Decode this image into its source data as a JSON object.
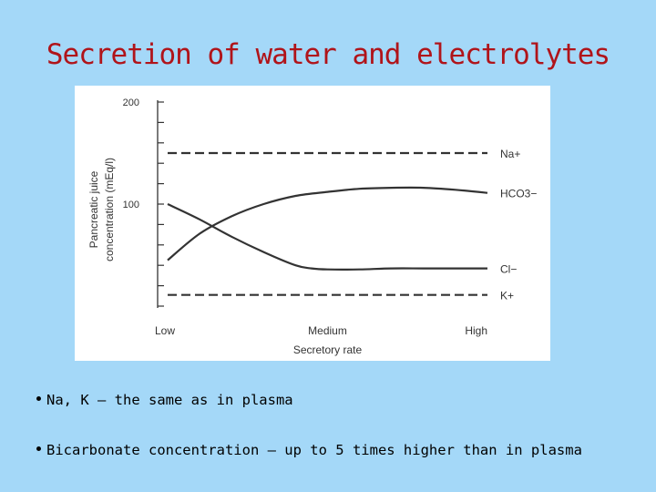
{
  "slide": {
    "title": "Secretion of water and electrolytes"
  },
  "bullets": [
    "Na, K – the same as in plasma",
    "Bicarbonate concentration – up to 5 times higher than in plasma"
  ],
  "colors": {
    "background": "#a4d8f8",
    "title": "#b0141a",
    "figure_background": "#ffffff",
    "line": "#333333"
  },
  "chart_data": {
    "type": "line",
    "title": "",
    "xlabel": "Secretory rate",
    "ylabel_lines": [
      "Pancreatic juice",
      "concentration (mEq/l)"
    ],
    "x_tick_labels": [
      "Low",
      "Medium",
      "High"
    ],
    "y_tick_labels": [
      "200",
      "100"
    ],
    "y_ticks_major": [
      200,
      100
    ],
    "ylim": [
      0,
      200
    ],
    "xlim": [
      0,
      100
    ],
    "grid": false,
    "legend": "line-end labels on right",
    "series": [
      {
        "name": "Na+",
        "style": "dashed",
        "x": [
          0,
          100
        ],
        "y": [
          150,
          150
        ]
      },
      {
        "name": "HCO3−",
        "style": "solid",
        "x": [
          0,
          10,
          20,
          30,
          40,
          50,
          60,
          70,
          80,
          90,
          100
        ],
        "y": [
          45,
          71,
          88,
          100,
          108,
          112,
          115,
          116,
          116,
          114,
          111
        ]
      },
      {
        "name": "Cl−",
        "style": "solid",
        "x": [
          0,
          10,
          20,
          30,
          40,
          45,
          50,
          60,
          70,
          80,
          90,
          100
        ],
        "y": [
          100,
          85,
          68,
          53,
          40,
          37,
          36,
          36,
          37,
          37,
          37,
          37
        ]
      },
      {
        "name": "K+",
        "style": "dashed",
        "x": [
          0,
          100
        ],
        "y": [
          11,
          11
        ]
      }
    ]
  }
}
